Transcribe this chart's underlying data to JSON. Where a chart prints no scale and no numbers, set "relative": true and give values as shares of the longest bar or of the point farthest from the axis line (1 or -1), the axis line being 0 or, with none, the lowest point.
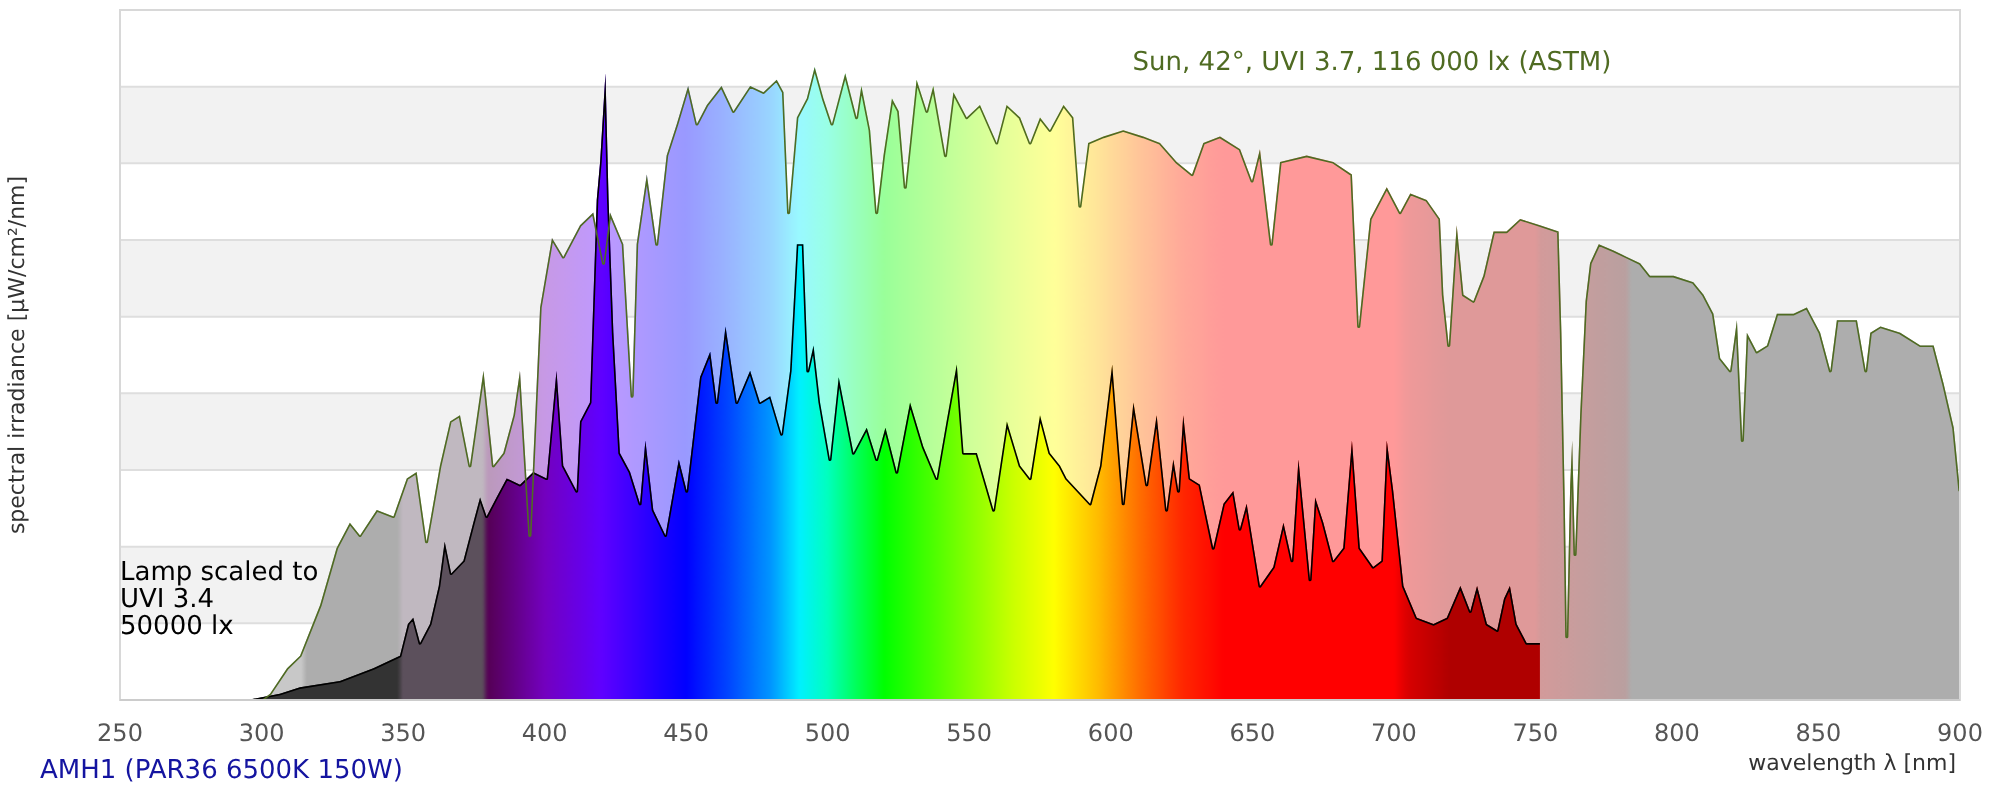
{
  "chart_data": {
    "type": "area",
    "relative": true,
    "title": "AMH1 (PAR36 6500K 150W)",
    "xlabel": "wavelength λ [nm]",
    "ylabel": "spectral irradiance [µW/cm²/nm]",
    "annotations": [
      "Sun, 42°, UVI 3.7, 116 000 lx (ASTM)",
      "Lamp scaled to\nUVI 3.4\n50000 lx"
    ],
    "xlim": [
      250,
      900
    ],
    "xticks": [
      250,
      300,
      350,
      400,
      450,
      500,
      550,
      600,
      650,
      700,
      750,
      800,
      850,
      900
    ],
    "grid": "y",
    "series": [
      {
        "color": "#4f6b22",
        "x": [
          300,
          303,
          309,
          313.6,
          320.7,
          326.5,
          331.2,
          334.8,
          340.7,
          346.6,
          351.3,
          354.8,
          358.3,
          363,
          366.6,
          370.1,
          373.6,
          378.4,
          381.9,
          385.4,
          389,
          391.3,
          394.8,
          398.4,
          402.6,
          406.6,
          412.5,
          417.2,
          420.8,
          423.1,
          427.8,
          430.9,
          432.5,
          436.1,
          439.6,
          443.1,
          446.7,
          450.7,
          453.8,
          457.3,
          462.5,
          466.7,
          472.6,
          477.3,
          482,
          484.4,
          486.2,
          489.1,
          492.6,
          495.4,
          498.5,
          501.5,
          506.2,
          510.2,
          511.9,
          515,
          517.3,
          519.7,
          522.7,
          525.1,
          527.4,
          531.4,
          535,
          537.3,
          541.6,
          544.4,
          549.1,
          553.8,
          559.7,
          563.2,
          568,
          571.5,
          575,
          578.5,
          583.3,
          586.8,
          589.1,
          592,
          597.4,
          604.4,
          611.5,
          617.4,
          623.3,
          628.7,
          632.7,
          638.6,
          645.7,
          649.9,
          652.7,
          656.7,
          659.8,
          669.2,
          678.6,
          685.2,
          687.6,
          691.6,
          697.5,
          702.2,
          705.8,
          711.6,
          716.3,
          717.5,
          719.4,
          722.2,
          724.6,
          728.1,
          731.6,
          735.2,
          739.8,
          744.6,
          751.6,
          758.2,
          759.2,
          760.4,
          761.1,
          762.3,
          763,
          764,
          765.8,
          767.7,
          769.3,
          772.4,
          777.6,
          782.3,
          787,
          790.5,
          798.8,
          805.8,
          809.4,
          812.9,
          815.3,
          818.8,
          821.2,
          823.1,
          824.7,
          828.2,
          831.8,
          835.3,
          841.2,
          845.9,
          850.6,
          854.2,
          856.5,
          863.6,
          866.7,
          868.3,
          871.9,
          878.9,
          886,
          890.7,
          894.2,
          897.8,
          900
        ],
        "values": [
          0,
          0.01,
          0.05,
          0.07,
          0.15,
          0.24,
          0.28,
          0.26,
          0.3,
          0.29,
          0.35,
          0.36,
          0.25,
          0.37,
          0.44,
          0.45,
          0.37,
          0.52,
          0.37,
          0.39,
          0.45,
          0.52,
          0.26,
          0.62,
          0.73,
          0.7,
          0.75,
          0.77,
          0.69,
          0.77,
          0.72,
          0.48,
          0.72,
          0.83,
          0.72,
          0.86,
          0.91,
          0.97,
          0.91,
          0.94,
          0.97,
          0.93,
          0.97,
          0.96,
          0.98,
          0.96,
          0.77,
          0.92,
          0.95,
          1,
          0.95,
          0.91,
          0.99,
          0.92,
          0.97,
          0.9,
          0.77,
          0.86,
          0.95,
          0.93,
          0.81,
          0.98,
          0.93,
          0.97,
          0.86,
          0.96,
          0.92,
          0.94,
          0.88,
          0.94,
          0.92,
          0.88,
          0.92,
          0.9,
          0.94,
          0.92,
          0.78,
          0.88,
          0.89,
          0.9,
          0.89,
          0.88,
          0.85,
          0.83,
          0.88,
          0.89,
          0.87,
          0.82,
          0.87,
          0.72,
          0.85,
          0.86,
          0.85,
          0.83,
          0.59,
          0.76,
          0.81,
          0.77,
          0.8,
          0.79,
          0.76,
          0.64,
          0.56,
          0.75,
          0.64,
          0.63,
          0.67,
          0.74,
          0.74,
          0.76,
          0.75,
          0.74,
          0.58,
          0.31,
          0.1,
          0.34,
          0.41,
          0.23,
          0.45,
          0.63,
          0.69,
          0.72,
          0.71,
          0.7,
          0.69,
          0.67,
          0.67,
          0.66,
          0.64,
          0.61,
          0.54,
          0.52,
          0.6,
          0.41,
          0.58,
          0.55,
          0.56,
          0.61,
          0.61,
          0.62,
          0.58,
          0.52,
          0.6,
          0.6,
          0.52,
          0.58,
          0.59,
          0.58,
          0.56,
          0.56,
          0.5,
          0.43,
          0.33
        ]
      },
      {
        "color": "#000000",
        "x": [
          295,
          306.5,
          313.6,
          327.7,
          339.5,
          348.9,
          351.7,
          353.6,
          356,
          359.5,
          362.6,
          364.7,
          367,
          371.3,
          374.8,
          377.2,
          379.5,
          383,
          386.6,
          391.3,
          396,
          400.7,
          404.2,
          406.6,
          411.3,
          412.5,
          416,
          418.4,
          419.6,
          421.5,
          422.6,
          424.3,
          426.6,
          430.2,
          433.7,
          435.6,
          438.4,
          442.7,
          447.4,
          450.2,
          454.9,
          458.5,
          460.8,
          463.9,
          467.9,
          472.6,
          476.1,
          479.7,
          483.7,
          486.7,
          489.1,
          491.4,
          493,
          495,
          497.3,
          500.8,
          503.9,
          509.1,
          513.8,
          517.3,
          520.4,
          524.4,
          529.1,
          533.8,
          538.5,
          542,
          545.6,
          548,
          552.7,
          558.6,
          563.3,
          568,
          571.5,
          575,
          578.5,
          582.1,
          584.4,
          592.7,
          596.2,
          600.5,
          604.4,
          608,
          612.7,
          616.2,
          619.7,
          622.1,
          623.9,
          625.6,
          628,
          631.5,
          636.2,
          639.8,
          643.3,
          645.6,
          648,
          652.7,
          657.4,
          661,
          664,
          666.3,
          670.4,
          672.2,
          675.1,
          678.6,
          682.1,
          685.2,
          688,
          692.7,
          695.6,
          697.5,
          699.8,
          703.4,
          708.1,
          714,
          718.7,
          723.5,
          727,
          729.4,
          732.9,
          736.5,
          738.9,
          741,
          743.4,
          746.9,
          751.6
        ],
        "values": [
          0,
          0.01,
          0.02,
          0.03,
          0.05,
          0.07,
          0.12,
          0.13,
          0.09,
          0.12,
          0.18,
          0.25,
          0.2,
          0.22,
          0.28,
          0.32,
          0.29,
          0.32,
          0.35,
          0.34,
          0.36,
          0.35,
          0.52,
          0.37,
          0.33,
          0.44,
          0.47,
          0.79,
          0.85,
          0.99,
          0.79,
          0.58,
          0.39,
          0.36,
          0.31,
          0.41,
          0.3,
          0.26,
          0.38,
          0.33,
          0.51,
          0.55,
          0.47,
          0.59,
          0.47,
          0.52,
          0.47,
          0.48,
          0.42,
          0.52,
          0.72,
          0.72,
          0.52,
          0.56,
          0.47,
          0.38,
          0.51,
          0.39,
          0.43,
          0.38,
          0.43,
          0.36,
          0.47,
          0.4,
          0.35,
          0.44,
          0.53,
          0.39,
          0.39,
          0.3,
          0.44,
          0.37,
          0.35,
          0.45,
          0.39,
          0.37,
          0.35,
          0.31,
          0.37,
          0.53,
          0.31,
          0.47,
          0.34,
          0.45,
          0.3,
          0.38,
          0.33,
          0.45,
          0.35,
          0.34,
          0.24,
          0.31,
          0.33,
          0.27,
          0.31,
          0.18,
          0.21,
          0.28,
          0.22,
          0.38,
          0.19,
          0.32,
          0.28,
          0.22,
          0.24,
          0.41,
          0.24,
          0.21,
          0.22,
          0.41,
          0.33,
          0.18,
          0.13,
          0.12,
          0.13,
          0.18,
          0.14,
          0.18,
          0.12,
          0.11,
          0.16,
          0.18,
          0.12,
          0.09,
          0.09
        ]
      }
    ]
  }
}
